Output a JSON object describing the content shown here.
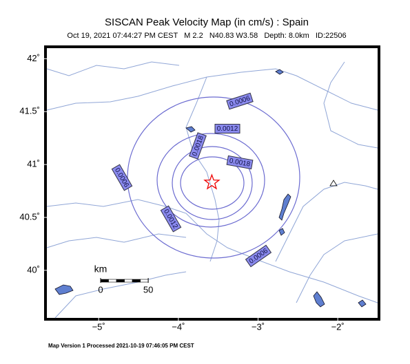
{
  "header": {
    "title": "SISCAN Peak Velocity Map (in cm/s) : Spain",
    "subtitle": "Oct 19, 2021 07:44:27 PM CEST   M 2.2   N40.83 W3.58   Depth: 8.0km   ID:22506"
  },
  "map": {
    "lonlim": [
      -5.65,
      -1.5
    ],
    "latlim": [
      39.55,
      42.1
    ],
    "lat_ticks": [
      {
        "value": 40,
        "label": "40˚"
      },
      {
        "value": 40.5,
        "label": "40.5˚"
      },
      {
        "value": 41,
        "label": "41˚"
      },
      {
        "value": 41.5,
        "label": "41.5˚"
      },
      {
        "value": 42,
        "label": "42˚"
      }
    ],
    "lon_ticks": [
      {
        "value": -5,
        "label": "−5˚"
      },
      {
        "value": -4,
        "label": "−4˚"
      },
      {
        "value": -3,
        "label": "−3˚"
      },
      {
        "value": -2,
        "label": "−2˚"
      }
    ],
    "epicenter": {
      "lon": -3.58,
      "lat": 40.83
    },
    "contour_labels": [
      "0.0006",
      "0.0012",
      "0.0018",
      "0.0018",
      "0.0006",
      "0.0012",
      "0.0006"
    ],
    "scale": {
      "unit": "km",
      "ticks": [
        0,
        50
      ]
    }
  },
  "footer": "Map Version 1 Processed 2021-10-19 07:46:05 PM CEST"
}
